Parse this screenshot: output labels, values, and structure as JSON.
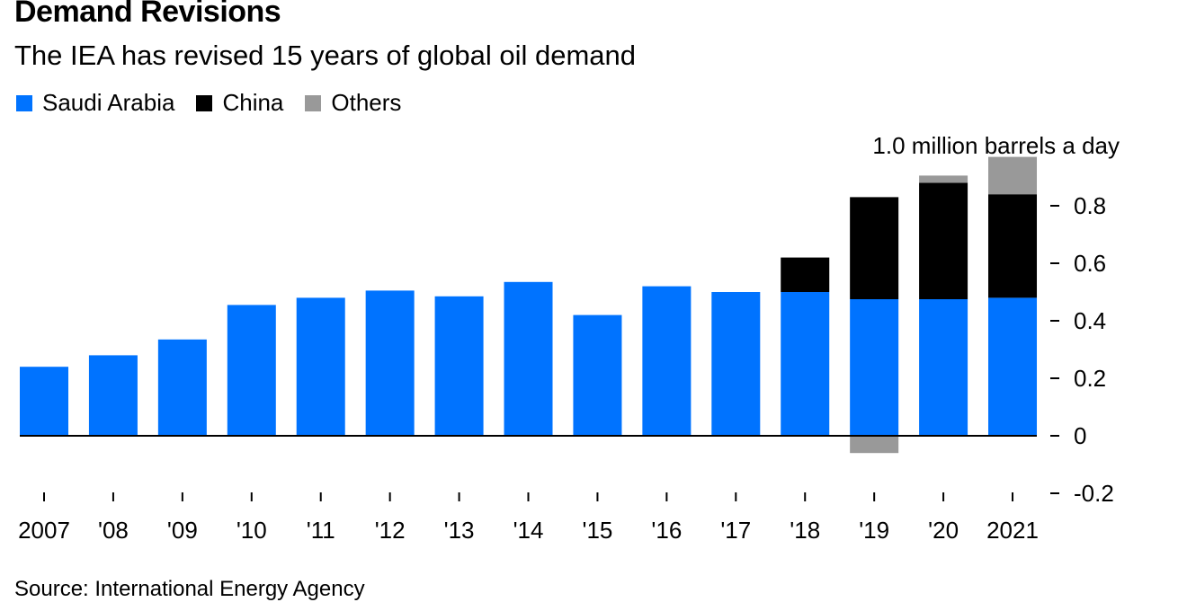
{
  "chart_data": {
    "type": "bar",
    "stacked": true,
    "title": "Demand Revisions",
    "subtitle": "The IEA has revised 15 years of global oil demand",
    "categories": [
      "2007",
      "'08",
      "'09",
      "'10",
      "'11",
      "'12",
      "'13",
      "'14",
      "'15",
      "'16",
      "'17",
      "'18",
      "'19",
      "'20",
      "2021"
    ],
    "series": [
      {
        "name": "Saudi Arabia",
        "color": "#0073ff",
        "values": [
          0.24,
          0.28,
          0.335,
          0.455,
          0.48,
          0.505,
          0.485,
          0.535,
          0.42,
          0.52,
          0.5,
          0.5,
          0.475,
          0.475,
          0.48
        ]
      },
      {
        "name": "China",
        "color": "#000000",
        "values": [
          0,
          0,
          0,
          0,
          0,
          0,
          0,
          0,
          0,
          0,
          0,
          0.12,
          0.355,
          0.405,
          0.36
        ]
      },
      {
        "name": "Others",
        "color": "#999999",
        "values": [
          0,
          0,
          0,
          0,
          0,
          0,
          0,
          0,
          0,
          0,
          0,
          0,
          -0.06,
          0.025,
          0.13
        ]
      }
    ],
    "ylabel": "1.0 million barrels a day",
    "yticks": [
      0.8,
      0.6,
      0.4,
      0.2,
      0,
      -0.2
    ],
    "ytick_labels": [
      "0.8",
      "0.6",
      "0.4",
      "0.2",
      "0",
      "-0.2"
    ],
    "ylim": [
      -0.2,
      1.0
    ],
    "axis_position": "right",
    "legend_position": "top-left",
    "grid": false
  },
  "source": "Source: International Energy Agency"
}
